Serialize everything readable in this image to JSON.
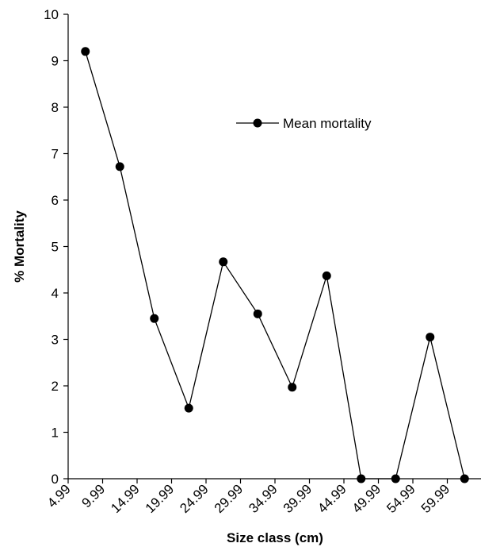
{
  "chart_data": {
    "type": "line",
    "title": "",
    "xlabel": "Size class (cm)",
    "ylabel": "% Mortality",
    "categories": [
      "4.99",
      "9.99",
      "14.99",
      "19.99",
      "24.99",
      "29.99",
      "34.99",
      "39.99",
      "44.99",
      "49.99",
      "54.99",
      "59.99"
    ],
    "series": [
      {
        "name": "Mean mortality",
        "values": [
          9.2,
          6.72,
          3.45,
          1.52,
          4.67,
          3.55,
          1.97,
          4.37,
          0,
          0,
          3.05,
          0
        ],
        "color": "#000000"
      }
    ],
    "ylim": [
      0,
      10
    ],
    "yticks": [
      "0",
      "1",
      "2",
      "3",
      "4",
      "5",
      "6",
      "7",
      "8",
      "9",
      "10"
    ],
    "legend_position": "top-right",
    "grid": false
  }
}
